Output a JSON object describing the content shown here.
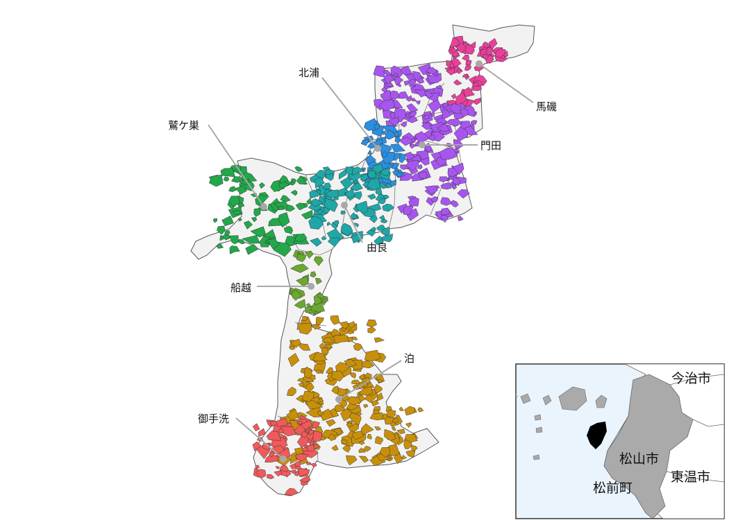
{
  "map": {
    "land_color": "#f2f2f2",
    "outline_color": "#555555",
    "leader_color": "#a8a8a8",
    "districts": [
      {
        "label": "馬磯",
        "color": "#e8409a"
      },
      {
        "label": "門田",
        "color": "#a855f0"
      },
      {
        "label": "北浦",
        "color": "#2b8fe0"
      },
      {
        "label": "由良",
        "color": "#1fa7a7"
      },
      {
        "label": "鷲ケ巣",
        "color": "#22a84a"
      },
      {
        "label": "船越",
        "color": "#6aa830"
      },
      {
        "label": "泊",
        "color": "#c8900a"
      },
      {
        "label": "御手洗",
        "color": "#f05a5a"
      }
    ]
  },
  "inset": {
    "sea_color": "#eaf4fd",
    "highlight_color": "#000000",
    "city_color": "#aaaaaa",
    "labels": [
      "今治市",
      "松山市",
      "東温市",
      "松前町"
    ]
  }
}
